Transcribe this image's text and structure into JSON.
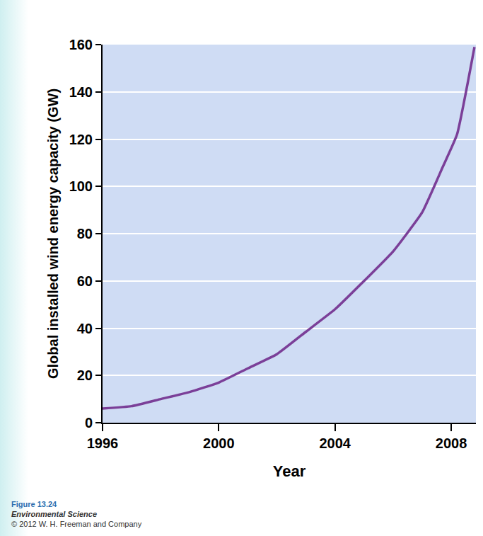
{
  "chart_data": {
    "type": "line",
    "y_label": "Global installed wind energy capacity (GW)",
    "x_label": "Year",
    "x": [
      1996,
      1997,
      1998,
      1999,
      2000,
      2001,
      2002,
      2003,
      2004,
      2005,
      2006,
      2007,
      2007.7,
      2008.2,
      2008.8
    ],
    "values": [
      6,
      7,
      10,
      13,
      17,
      23,
      29,
      38.5,
      48,
      60,
      72.5,
      89,
      108,
      122,
      159
    ],
    "color": "#7b3f98",
    "xlim": [
      1996,
      2008.85
    ],
    "xticks": [
      1996,
      2000,
      2004,
      2008
    ],
    "ylim": [
      0,
      160
    ],
    "yticks": [
      0,
      20,
      40,
      60,
      80,
      100,
      120,
      140,
      160
    ],
    "grid": true,
    "annotations": [
      "Figure 13.24",
      "Environmental Science",
      "© 2012 W. H. Freeman and Company"
    ]
  }
}
